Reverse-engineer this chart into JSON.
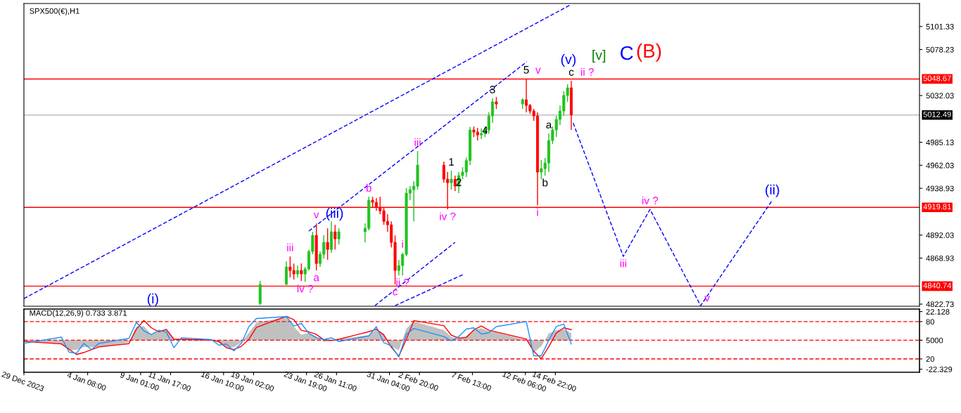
{
  "chart_data": [
    {
      "type": "candlestick",
      "title": "SPX500(€),H1",
      "tick_labels": "y",
      "x": [
        "2024-01-19T16:00",
        "2024-01-22T00:00",
        "2024-01-22T08:00",
        "2024-01-22T16:00",
        "2024-01-23T00:00",
        "2024-01-23T08:00",
        "2024-01-23T16:00",
        "2024-01-24T00:00",
        "2024-01-24T08:00",
        "2024-01-24T16:00",
        "2024-01-25T00:00",
        "2024-01-25T08:00",
        "2024-01-25T16:00",
        "2024-01-26T00:00",
        "2024-01-26T08:00",
        "2024-01-26T16:00",
        "2024-01-29T00:00",
        "2024-01-29T08:00",
        "2024-01-29T16:00",
        "2024-01-30T00:00",
        "2024-01-30T08:00",
        "2024-01-30T16:00",
        "2024-01-31T00:00",
        "2024-01-31T08:00",
        "2024-01-31T16:00",
        "2024-02-01T00:00",
        "2024-02-01T08:00",
        "2024-02-01T16:00",
        "2024-02-02T00:00",
        "2024-02-02T08:00",
        "2024-02-02T16:00",
        "2024-02-05T00:00",
        "2024-02-05T08:00",
        "2024-02-05T16:00",
        "2024-02-06T00:00",
        "2024-02-06T08:00",
        "2024-02-06T16:00",
        "2024-02-07T00:00",
        "2024-02-07T08:00",
        "2024-02-07T16:00",
        "2024-02-08T00:00",
        "2024-02-08T08:00",
        "2024-02-08T16:00",
        "2024-02-09T00:00",
        "2024-02-09T08:00",
        "2024-02-09T16:00",
        "2024-02-12T00:00",
        "2024-02-12T08:00",
        "2024-02-12T16:00",
        "2024-02-13T00:00",
        "2024-02-13T08:00",
        "2024-02-13T16:00",
        "2024-02-14T00:00",
        "2024-02-14T08:00",
        "2024-02-14T16:00",
        "2024-02-15T00:00",
        "2024-02-15T08:00",
        "2024-02-15T16:00",
        "2024-02-16T00:00",
        "2024-02-16T08:00"
      ],
      "ohlc": [
        [
          4823.3,
          4845.9,
          4821.9,
          4842.4
        ],
        [
          4842.4,
          4865.7,
          4842.4,
          4860.0
        ],
        [
          4860.0,
          4870.6,
          4849.4,
          4856.5
        ],
        [
          4856.5,
          4863.5,
          4847.3,
          4853.0
        ],
        [
          4853.0,
          4861.4,
          4849.4,
          4856.5
        ],
        [
          4856.5,
          4863.5,
          4845.9,
          4853.0
        ],
        [
          4853.0,
          4860.0,
          4845.2,
          4857.9
        ],
        [
          4857.9,
          4877.6,
          4856.5,
          4875.5
        ],
        [
          4875.5,
          4895.3,
          4872.7,
          4891.7
        ],
        [
          4891.7,
          4903.7,
          4856.5,
          4863.5
        ],
        [
          4863.5,
          4875.5,
          4860.0,
          4872.7
        ],
        [
          4872.7,
          4891.7,
          4868.5,
          4884.7
        ],
        [
          4884.7,
          4898.8,
          4867.1,
          4877.6
        ],
        [
          4877.6,
          4905.8,
          4874.1,
          4895.3
        ],
        [
          4895.3,
          4902.3,
          4877.6,
          4888.2
        ],
        [
          4888.2,
          4898.8,
          4882.6,
          4895.3
        ],
        [
          4895.3,
          4903.7,
          4884.7,
          4898.8
        ],
        [
          4898.8,
          4930.5,
          4896.7,
          4927.0
        ],
        [
          4927.0,
          4930.5,
          4919.9,
          4924.9
        ],
        [
          4924.9,
          4929.1,
          4916.4,
          4919.9
        ],
        [
          4919.9,
          4930.5,
          4912.9,
          4916.4
        ],
        [
          4916.4,
          4919.9,
          4902.3,
          4905.8
        ],
        [
          4905.8,
          4912.9,
          4895.3,
          4902.3
        ],
        [
          4902.3,
          4905.8,
          4879.7,
          4884.7
        ],
        [
          4884.7,
          4891.7,
          4842.4,
          4856.5
        ],
        [
          4856.5,
          4867.1,
          4851.5,
          4861.4
        ],
        [
          4861.4,
          4874.1,
          4851.5,
          4872.7
        ],
        [
          4872.7,
          4939.0,
          4870.6,
          4934.0
        ],
        [
          4934.0,
          4941.1,
          4927.0,
          4937.6
        ],
        [
          4937.6,
          4946.0,
          4905.8,
          4941.1
        ],
        [
          4941.1,
          4976.3,
          4937.6,
          4962.2
        ],
        [
          4962.2,
          4965.8,
          4944.6,
          4948.1
        ],
        [
          4948.1,
          4955.2,
          4917.8,
          4944.6
        ],
        [
          4944.6,
          4956.6,
          4937.6,
          4948.1
        ],
        [
          4948.1,
          4951.7,
          4936.2,
          4941.1
        ],
        [
          4941.1,
          4955.2,
          4934.0,
          4951.7
        ],
        [
          4951.7,
          4960.1,
          4948.1,
          4955.2
        ],
        [
          4955.2,
          4969.7,
          4950.3,
          4966.8
        ],
        [
          4966.8,
          5000.6,
          4962.2,
          4997.5
        ],
        [
          4997.5,
          5001.0,
          4990.4,
          4995.4
        ],
        [
          4995.4,
          4999.6,
          4986.9,
          4992.5
        ],
        [
          4992.5,
          4998.9,
          4988.3,
          4993.9
        ],
        [
          4993.9,
          5001.0,
          4990.4,
          4997.5
        ],
        [
          4997.5,
          5015.1,
          4993.9,
          5011.6
        ],
        [
          5011.6,
          5029.2,
          5004.5,
          5025.7
        ],
        [
          5025.7,
          5030.6,
          5018.6,
          5023.6
        ],
        [
          5023.6,
          5029.2,
          5018.6,
          5027.8
        ],
        [
          5027.8,
          5049.0,
          5015.1,
          5022.1
        ],
        [
          5022.1,
          5023.6,
          5013.7,
          5016.5
        ],
        [
          5016.5,
          5018.6,
          5006.6,
          5011.6
        ],
        [
          5011.6,
          5015.1,
          4922.0,
          4955.2
        ],
        [
          4955.2,
          4967.2,
          4948.1,
          4958.7
        ],
        [
          4958.7,
          4969.3,
          4951.7,
          4964.3
        ],
        [
          4964.3,
          4994.0,
          4955.2,
          4986.9
        ],
        [
          4986.9,
          5001.0,
          4983.4,
          4997.5
        ],
        [
          4997.5,
          5011.6,
          4990.4,
          5008.1
        ],
        [
          5008.1,
          5022.1,
          5002.4,
          5016.5
        ],
        [
          5016.5,
          5036.3,
          5011.6,
          5032.1
        ],
        [
          5032.1,
          5043.3,
          5025.7,
          5039.8
        ],
        [
          5039.8,
          5046.8,
          4997.5,
          5012.49
        ]
      ],
      "colors": [
        "#1fc31f",
        "#1fc31f",
        "#ff0000",
        "#ff0000",
        "#1fc31f",
        "#ff0000",
        "#1fc31f",
        "#1fc31f",
        "#1fc31f",
        "#ff0000",
        "#1fc31f",
        "#1fc31f",
        "#ff0000",
        "#1fc31f",
        "#ff0000",
        "#1fc31f",
        "#1fc31f",
        "#1fc31f",
        "#ff0000",
        "#ff0000",
        "#ff0000",
        "#ff0000",
        "#ff0000",
        "#ff0000",
        "#ff0000",
        "#1fc31f",
        "#1fc31f",
        "#1fc31f",
        "#1fc31f",
        "#1fc31f",
        "#1fc31f",
        "#ff0000",
        "#ff0000",
        "#1fc31f",
        "#ff0000",
        "#1fc31f",
        "#1fc31f",
        "#1fc31f",
        "#1fc31f",
        "#ff0000",
        "#ff0000",
        "#1fc31f",
        "#1fc31f",
        "#1fc31f",
        "#1fc31f",
        "#ff0000",
        "#1fc31f",
        "#ff0000",
        "#ff0000",
        "#ff0000",
        "#ff0000",
        "#1fc31f",
        "#1fc31f",
        "#1fc31f",
        "#1fc31f",
        "#1fc31f",
        "#1fc31f",
        "#1fc31f",
        "#1fc31f",
        "#ff0000"
      ],
      "series": [
        {
          "type": "line",
          "line_style": "dashed",
          "color": "#0000ff",
          "x": [
            "2023-12-29T16:00",
            "2024-02-16T06:00"
          ],
          "values": [
            4828.3,
            5123.0
          ]
        },
        {
          "type": "line",
          "line_style": "dashed",
          "color": "#0000ff",
          "x": [
            "2024-01-24T00:00",
            "2024-02-12T09:00"
          ],
          "values": [
            4896.0,
            5065.9
          ]
        },
        {
          "type": "line",
          "line_style": "dashed",
          "color": "#0000ff",
          "x": [
            "2024-01-29T21:00",
            "2024-02-06T00:00"
          ],
          "values": [
            4821.2,
            4884.7
          ]
        },
        {
          "type": "line",
          "line_style": "dashed",
          "color": "#0000ff",
          "x": [
            "2024-01-31T16:00",
            "2024-02-06T20:00"
          ],
          "values": [
            4821.2,
            4853.0
          ]
        },
        {
          "type": "line",
          "line_style": "dashed",
          "color": "#0000ff",
          "x": [
            "2024-02-16T12:00",
            "2024-02-20T23:00",
            "2024-02-23T08:00",
            "2024-02-27T20:00",
            "2024-03-05T05:00"
          ],
          "values": [
            5004.5,
            4870.6,
            4917.8,
            4821.2,
            4927.0
          ]
        }
      ],
      "xlim": [
        "2023-12-29T16:00",
        "2024-03-18T07:00"
      ],
      "ylim": [
        4820.6,
        5124.4
      ],
      "yticks": [
        4822.73,
        4868.93,
        4892.03,
        4938.93,
        4962.03,
        4985.13,
        5032.03,
        5078.23,
        5101.33
      ],
      "ref_lines": [
        {
          "axis": "y",
          "value": 5048.67,
          "label": "5048.67",
          "color": "#ff0000"
        },
        {
          "axis": "y",
          "value": 5012.49,
          "label": "5012.49",
          "color": "#c0c0c0"
        },
        {
          "axis": "y",
          "value": 4919.81,
          "label": "4919.81",
          "color": "#ff0000"
        },
        {
          "axis": "y",
          "value": 4840.74,
          "label": "4840.74",
          "color": "#ff0000"
        }
      ],
      "annotations": [
        "(i)",
        {
          "text": "iii",
          "x": "2024-01-22T08:00",
          "y": 4870.6
        },
        {
          "text": "iv ?",
          "x": "2024-01-23T16:00",
          "y": 4845.2
        },
        {
          "text": "v",
          "x": "2024-01-24T16:00",
          "y": 4903.7
        },
        {
          "text": "(iii)",
          "x": "2024-01-24T16:00",
          "y": 4903.7
        },
        {
          "text": "a",
          "x": "2024-01-24T16:00",
          "y": 4856.5
        },
        {
          "text": "b",
          "x": "2024-01-29T08:00",
          "y": 4930.5
        },
        {
          "text": "c",
          "x": "2024-01-31T16:00",
          "y": 4842.4
        },
        {
          "text": "i",
          "x": "2024-02-01T08:00",
          "y": 4874.1
        },
        {
          "text": "ii ?",
          "x": "2024-02-01T08:00",
          "y": 4851.5
        },
        {
          "text": "iii",
          "x": "2024-02-02T16:00",
          "y": 4976.3
        },
        {
          "text": "1",
          "x": "2024-02-05T16:00",
          "y": 4956.6
        },
        {
          "text": "iv ?",
          "x": "2024-02-05T08:00",
          "y": 4917.8
        },
        {
          "text": "2",
          "x": "2024-02-06T08:00",
          "y": 4936.2
        },
        {
          "text": "3",
          "x": "2024-02-09T08:00",
          "y": 5029.2
        },
        {
          "text": "4",
          "x": "2024-02-08T16:00",
          "y": 4988.3
        },
        {
          "text": "5",
          "x": "2024-02-12T08:00",
          "y": 5049.0
        },
        {
          "text": "v",
          "x": "2024-02-12T08:00",
          "y": 5049.0
        },
        {
          "text": "i",
          "x": "2024-02-13T08:00",
          "y": 4922.0
        },
        {
          "text": "a",
          "x": "2024-02-14T08:00",
          "y": 4994.0
        },
        {
          "text": "b",
          "x": "2024-02-14T00:00",
          "y": 4951.7
        },
        {
          "text": "c",
          "x": "2024-02-16T08:00",
          "y": 5046.8
        },
        {
          "text": "ii ?",
          "x": "2024-02-16T08:00",
          "y": 5046.8
        },
        "(v)",
        "[v]",
        "C",
        "(B)",
        {
          "text": "iii",
          "x": "2024-02-20T23:00",
          "y": 4870.6
        },
        {
          "text": "iv ?",
          "x": "2024-02-23T08:00",
          "y": 4917.8
        },
        {
          "text": "v",
          "x": "2024-02-27T20:00",
          "y": 4821.2
        },
        {
          "text": "(ii)",
          "x": "2024-03-05T05:00",
          "y": 4927.0
        }
      ]
    },
    {
      "type": "line",
      "title": "MACD(12,26,9) 0.733 3.871",
      "x": [
        "2023-12-29T16:00",
        "2024-01-02T00:00",
        "2024-01-02T16:00",
        "2024-01-03T08:00",
        "2024-01-04T00:00",
        "2024-01-04T16:00",
        "2024-01-05T08:00",
        "2024-01-08T00:00",
        "2024-01-08T16:00",
        "2024-01-09T08:00",
        "2024-01-10T00:00",
        "2024-01-10T16:00",
        "2024-01-11T08:00",
        "2024-01-12T00:00",
        "2024-01-12T16:00",
        "2024-01-15T08:00",
        "2024-01-16T00:00",
        "2024-01-16T16:00",
        "2024-01-17T08:00",
        "2024-01-18T00:00",
        "2024-01-18T16:00",
        "2024-01-19T08:00",
        "2024-01-22T00:00",
        "2024-01-22T16:00",
        "2024-01-23T08:00",
        "2024-01-24T00:00",
        "2024-01-24T16:00",
        "2024-01-25T08:00",
        "2024-01-26T00:00",
        "2024-01-26T16:00",
        "2024-01-29T08:00",
        "2024-01-30T00:00",
        "2024-01-30T16:00",
        "2024-01-31T08:00",
        "2024-02-01T00:00",
        "2024-02-01T16:00",
        "2024-02-02T08:00",
        "2024-02-05T00:00",
        "2024-02-05T16:00",
        "2024-02-06T08:00",
        "2024-02-07T00:00",
        "2024-02-07T16:00",
        "2024-02-08T08:00",
        "2024-02-09T00:00",
        "2024-02-09T16:00",
        "2024-02-12T08:00",
        "2024-02-13T00:00",
        "2024-02-13T16:00",
        "2024-02-14T08:00",
        "2024-02-15T00:00",
        "2024-02-15T16:00",
        "2024-02-16T08:00"
      ],
      "series": [
        {
          "type": "area",
          "color": "#c0c0c0",
          "values": [
            -0.9,
            -3.2,
            -7.7,
            -7.4,
            -5.2,
            -5.2,
            -5.5,
            -1.7,
            10.6,
            10.9,
            4.2,
            7.4,
            8.3,
            0.8,
            0.7,
            0.3,
            -2.2,
            -5.2,
            -5.5,
            -1.7,
            5.7,
            13.5,
            18.0,
            10.6,
            4.2,
            5.7,
            3.0,
            -1.2,
            -0.4,
            0.8,
            4.0,
            8.3,
            5.2,
            -4.6,
            -7.7,
            8.9,
            14.6,
            7.8,
            2.5,
            1.3,
            3.4,
            7.8,
            9.3,
            7.0,
            6.1,
            0.3,
            -9.4,
            -4.6,
            5.2,
            7.9,
            8.5,
            5.5
          ]
        },
        {
          "type": "line",
          "color": "#ff0000",
          "values": [
            -0.9,
            -2.8,
            -6.8,
            -11.0,
            -9.4,
            -7.3,
            -5.1,
            -2.6,
            8.6,
            15.3,
            9.6,
            6.5,
            8.4,
            0.8,
            0.8,
            0.1,
            -0.9,
            -5.7,
            -7.2,
            -4.7,
            0.7,
            9.9,
            18.5,
            15.9,
            7.6,
            6.5,
            4.5,
            0.3,
            -0.2,
            0.8,
            6.6,
            8.6,
            4.0,
            -5.4,
            -12.3,
            0.8,
            15.2,
            11.3,
            3.9,
            1.7,
            2.1,
            8.0,
            11.0,
            7.8,
            6.4,
            1.0,
            -8.6,
            -14.1,
            -5.0,
            5.6,
            9.6,
            8.2
          ]
        },
        {
          "type": "line",
          "color": "#1e90ff",
          "axis": "y2",
          "values": [
            45,
            55,
            31,
            29,
            45,
            35,
            45,
            53,
            79,
            65,
            59,
            66,
            63,
            38,
            54,
            51,
            42,
            44,
            33,
            45,
            72,
            85,
            88,
            73,
            77,
            61,
            54,
            51,
            54,
            48,
            57,
            72,
            46,
            41,
            23,
            60,
            69,
            56,
            49,
            56,
            68,
            70,
            60,
            62,
            72,
            80,
            25,
            25,
            50,
            72,
            76,
            44
          ]
        }
      ],
      "xlim": [
        "2023-12-29T16:00",
        "2024-03-18T07:00"
      ],
      "xticks": [
        {
          "value": "2023-12-29T16:00",
          "label": "29 Dec 2023"
        },
        {
          "value": "2024-01-04T08:00",
          "label": "4 Jan 08:00"
        },
        {
          "value": "2024-01-09T01:00",
          "label": "9 Jan 01:00"
        },
        {
          "value": "2024-01-11T17:00",
          "label": "11 Jan 17:00"
        },
        {
          "value": "2024-01-16T10:00",
          "label": "16 Jan 10:00"
        },
        {
          "value": "2024-01-19T02:00",
          "label": "19 Jan 02:00"
        },
        {
          "value": "2024-01-23T19:00",
          "label": "23 Jan 19:00"
        },
        {
          "value": "2024-01-26T11:00",
          "label": "26 Jan 11:00"
        },
        {
          "value": "2024-01-31T04:00",
          "label": "31 Jan 04:00"
        },
        {
          "value": "2024-02-02T20:00",
          "label": "2 Feb 20:00"
        },
        {
          "value": "2024-02-07T13:00",
          "label": "7 Feb 13:00"
        },
        {
          "value": "2024-02-12T06:00",
          "label": "12 Feb 06:00"
        },
        {
          "value": "2024-02-14T22:00",
          "label": "14 Feb 22:00"
        }
      ],
      "ylim": [
        -24.7,
        24.1
      ],
      "yticks": [
        22.128,
        {
          "value": 0,
          "label": "00"
        },
        -22.329
      ],
      "y2lim": [
        -1.5,
        100.2
      ],
      "y2ticks": [
        80,
        50,
        20
      ],
      "ref_lines": [
        {
          "axis": "y2",
          "value": 80,
          "color": "#ff0000",
          "line_style": "dashed"
        },
        {
          "axis": "y2",
          "value": 50,
          "color": "#ff0000",
          "line_style": "dashed"
        },
        {
          "axis": "y2",
          "value": 20,
          "color": "#ff0000",
          "line_style": "dashed"
        }
      ]
    }
  ]
}
